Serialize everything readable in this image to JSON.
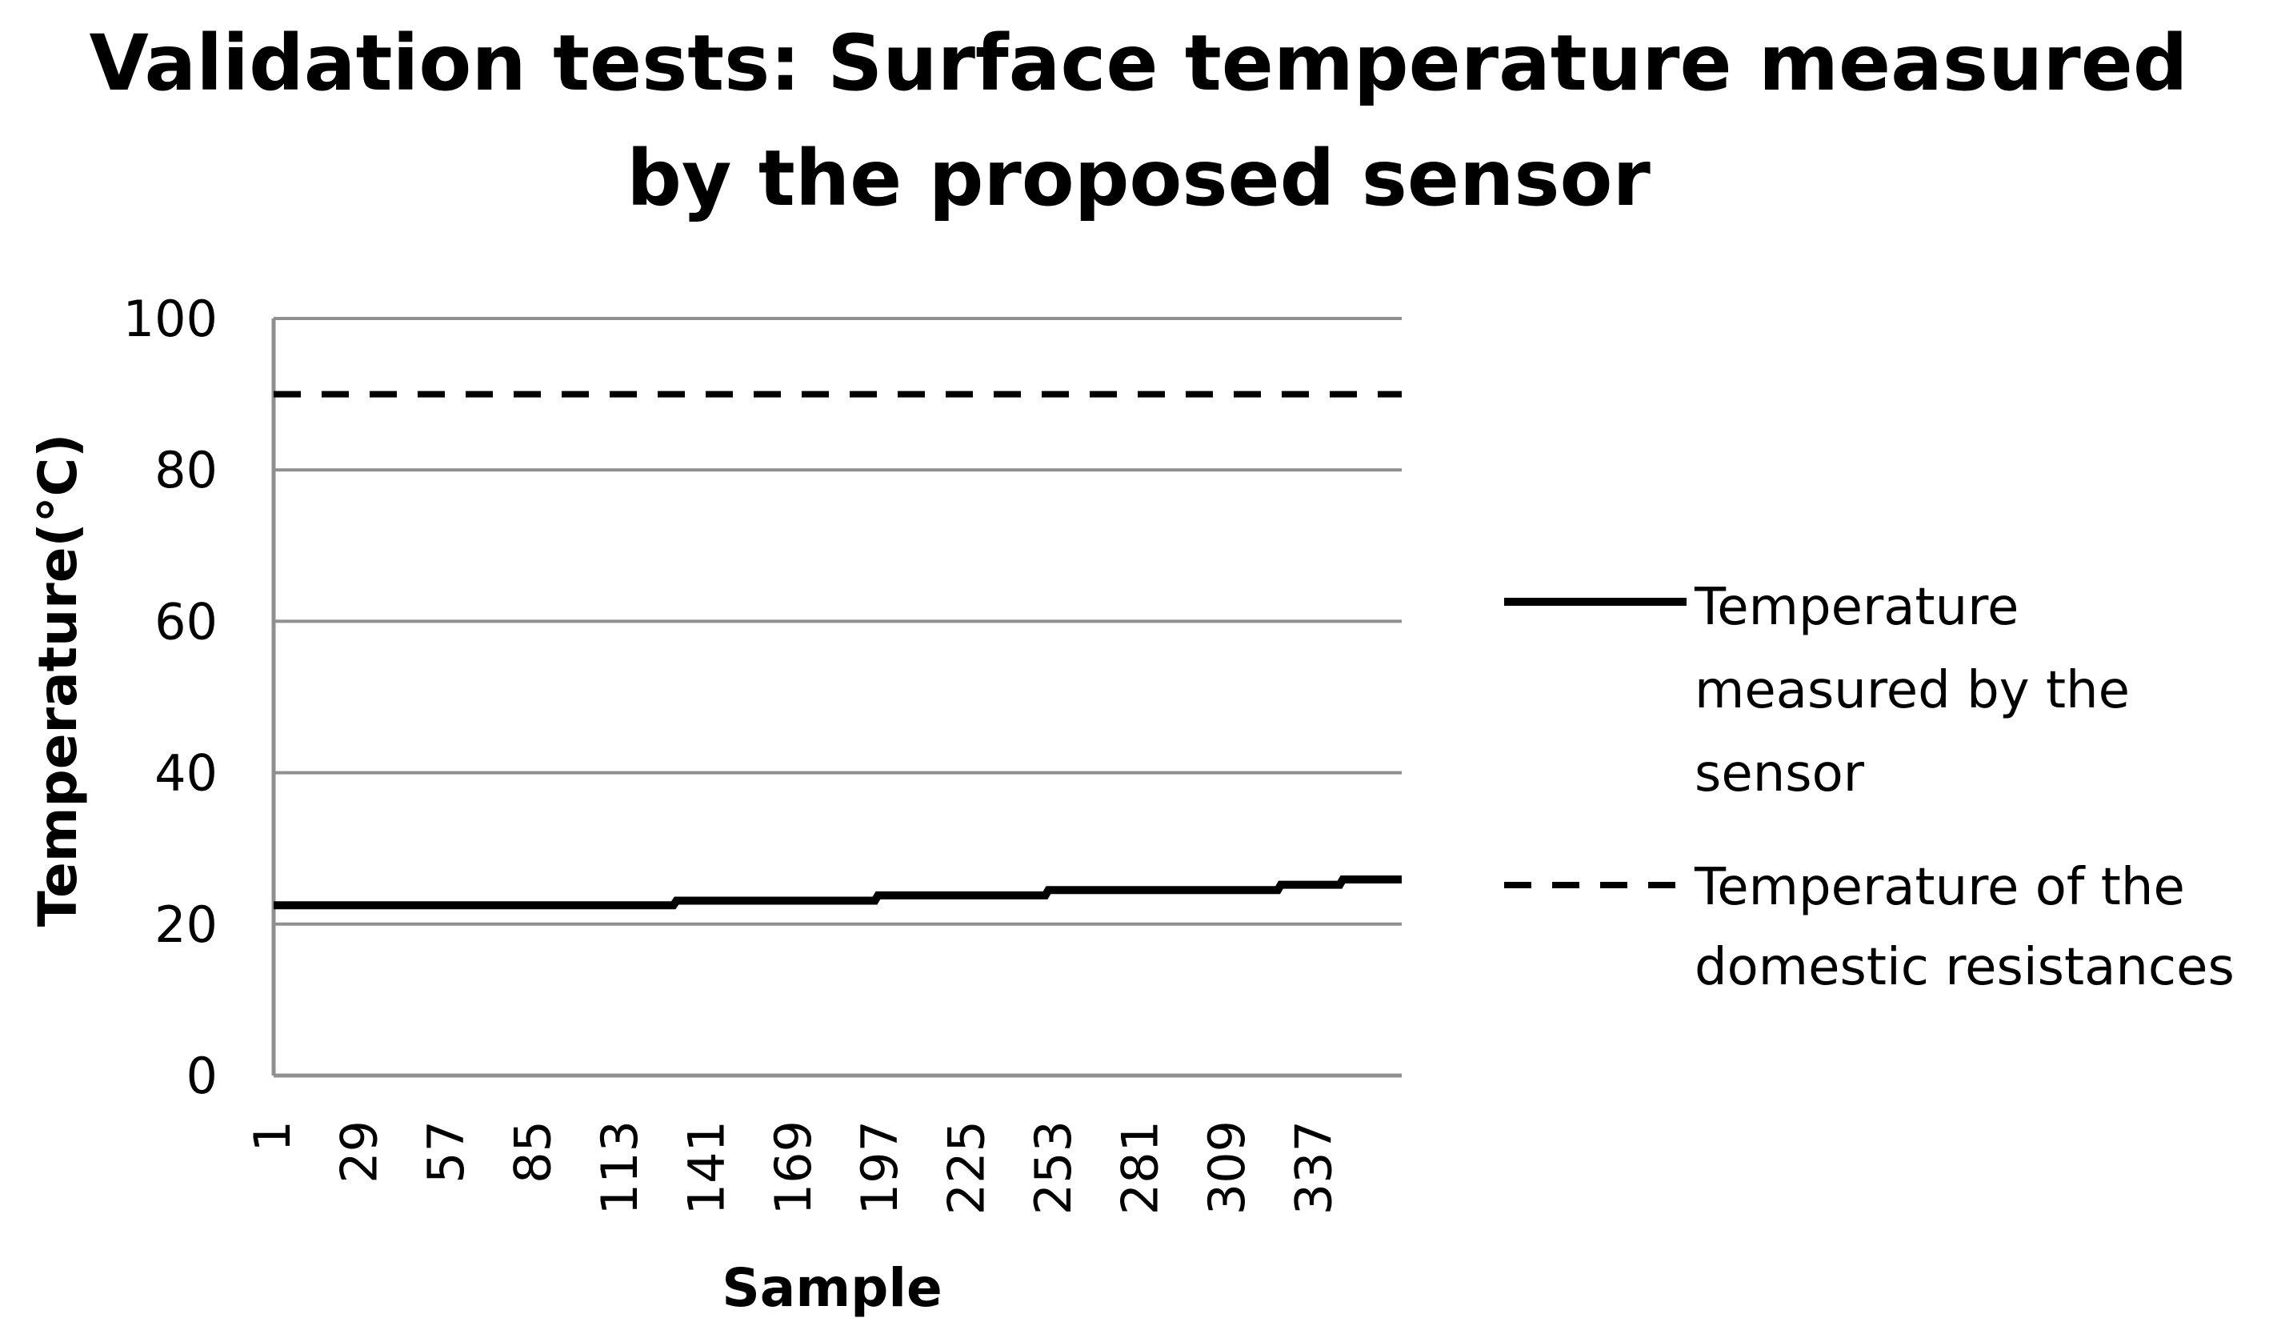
{
  "chart_data": {
    "type": "line",
    "title": "Validation tests: Surface temperature measured by the proposed sensor",
    "title_lines": [
      "Validation tests: Surface temperature measured",
      "by the proposed sensor"
    ],
    "xlabel": "Sample",
    "ylabel": "Temperature(°C)",
    "ylim": [
      0,
      100
    ],
    "yticks": [
      0,
      20,
      40,
      60,
      80,
      100
    ],
    "grid": true,
    "legend_position": "right",
    "x_tick_labels": [
      "1",
      "29",
      "57",
      "85",
      "113",
      "141",
      "169",
      "197",
      "225",
      "253",
      "281",
      "309",
      "337"
    ],
    "x_range": [
      1,
      365
    ],
    "series": [
      {
        "name": "Temperature measured by the sensor",
        "legend_lines": [
          "Temperature",
          "measured by the",
          "sensor"
        ],
        "style": "solid",
        "color": "#000000",
        "x": [
          1,
          130,
          131,
          195,
          196,
          250,
          251,
          325,
          326,
          345,
          346,
          365
        ],
        "values": [
          22.5,
          22.5,
          23.1,
          23.1,
          23.8,
          23.8,
          24.5,
          24.5,
          25.2,
          25.2,
          25.9,
          25.9
        ]
      },
      {
        "name": "Temperature of the domestic resistances",
        "legend_lines": [
          "Temperature of the",
          "domestic resistances"
        ],
        "style": "dashed",
        "color": "#000000",
        "x": [
          1,
          365
        ],
        "values": [
          90,
          90
        ]
      }
    ]
  },
  "colors": {
    "grid": "#909090",
    "axis": "#909090",
    "text": "#000000"
  }
}
